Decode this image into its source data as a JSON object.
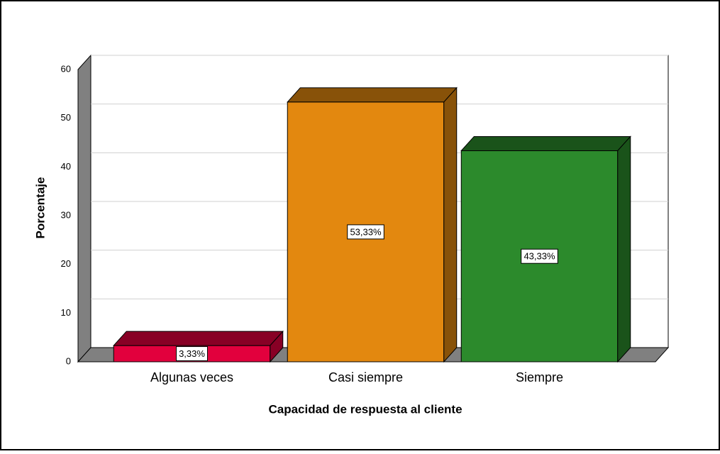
{
  "chart_data": {
    "type": "bar3d",
    "xlabel": "Capacidad de respuesta al cliente",
    "ylabel": "Porcentaje",
    "categories": [
      "Algunas veces",
      "Casi siempre",
      "Siempre"
    ],
    "values": [
      3.33,
      53.33,
      43.33
    ],
    "value_labels": [
      "3,33%",
      "53,33%",
      "43,33%"
    ],
    "colors": [
      "#e2003d",
      "#e3880f",
      "#2c8a2c"
    ],
    "ylim": [
      0,
      60
    ],
    "yticks": [
      0,
      10,
      20,
      30,
      40,
      50,
      60
    ],
    "grid": true
  }
}
